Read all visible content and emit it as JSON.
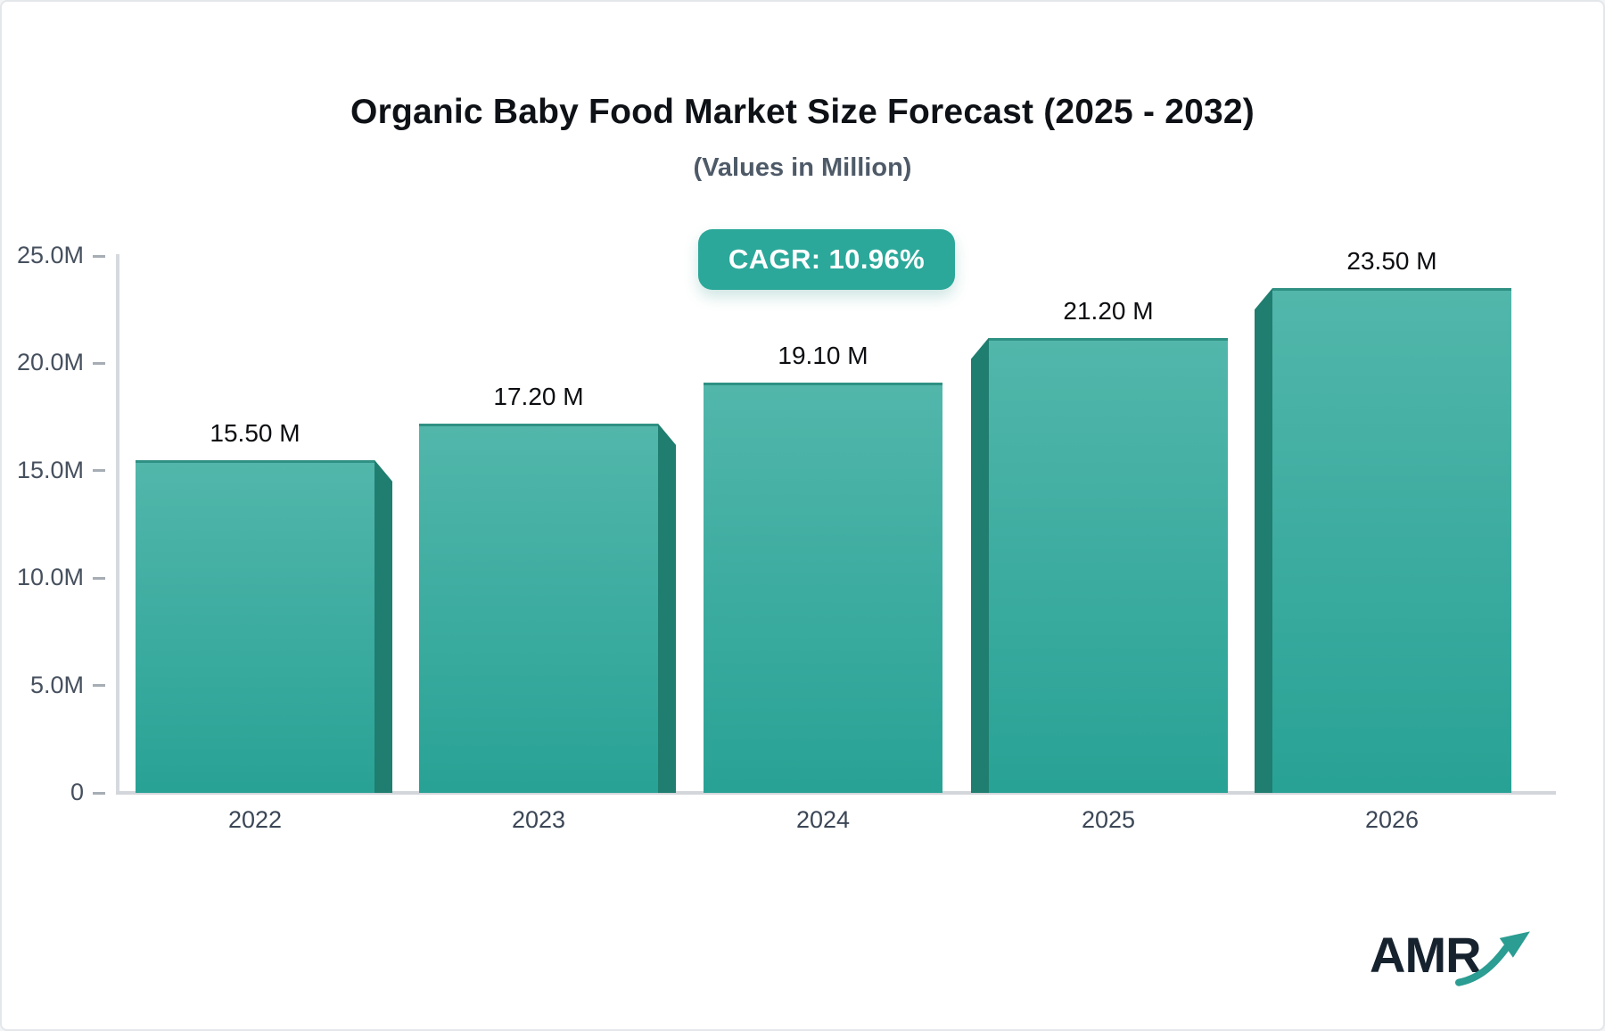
{
  "header": {
    "title": "Organic Baby Food Market Size Forecast (2025 - 2032)",
    "subtitle": "(Values in Million)"
  },
  "badge": {
    "label": "CAGR: 10.96%"
  },
  "chart_data": {
    "type": "bar",
    "title": "Organic Baby Food Market Size Forecast (2025 - 2032)",
    "subtitle": "(Values in Million)",
    "categories": [
      "2022",
      "2023",
      "2024",
      "2025",
      "2026"
    ],
    "values": [
      15.5,
      17.2,
      19.1,
      21.2,
      23.5
    ],
    "value_labels": [
      "15.50 M",
      "17.20 M",
      "19.10 M",
      "21.20 M",
      "23.50 M"
    ],
    "xlabel": "",
    "ylabel": "",
    "ylim": [
      0,
      25
    ],
    "y_ticks": [
      "25.0M",
      "20.0M",
      "15.0M",
      "10.0M",
      "5.0M",
      "0"
    ],
    "y_tick_values": [
      25,
      20,
      15,
      10,
      5,
      0
    ],
    "grid": false,
    "legend": "none",
    "annotations": [
      "CAGR: 10.96%"
    ]
  },
  "colors": {
    "bar_top": "#52b6ab",
    "bar_bottom": "#28a295",
    "bar_side": "#1f7e6f",
    "bar_top_edge": "#2f9183",
    "badge_bg": "#2ba89a",
    "logo_arrow": "#2b9d92",
    "title_text": "#0e1116",
    "subtitle_text": "#4e5a68",
    "axis_text": "#46505e"
  },
  "logo": {
    "text": "AMR",
    "icon": "trend-up-arrow-icon"
  }
}
